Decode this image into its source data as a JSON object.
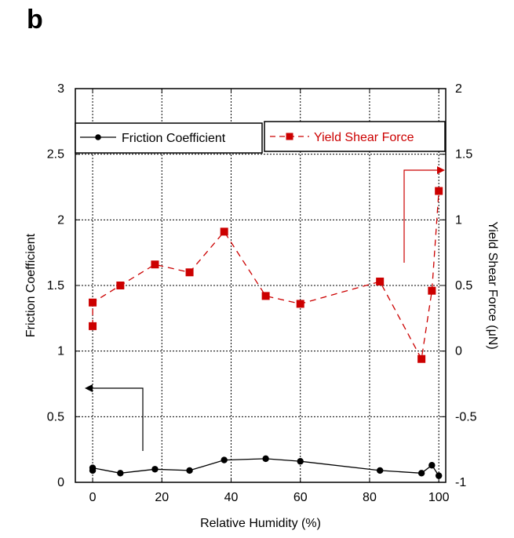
{
  "panel_label": "b",
  "chart_data": {
    "type": "line",
    "title": "",
    "xlabel": "Relative Humidity (%)",
    "ylabel": "Friction Coefficient",
    "y2label": "Yield Shear Force (μN)",
    "xlim": [
      -5,
      102
    ],
    "ylim": [
      0,
      3
    ],
    "y2lim": [
      -1,
      2
    ],
    "x_ticks": [
      "0",
      "20",
      "40",
      "60",
      "80",
      "100"
    ],
    "y_ticks": [
      "0",
      "0.5",
      "1",
      "1.5",
      "2",
      "2.5",
      "3"
    ],
    "y2_ticks": [
      "-1",
      "-0.5",
      "0",
      "0.5",
      "1",
      "1.5",
      "2"
    ],
    "grid": true,
    "legend_placement": "top",
    "series": [
      {
        "name": "Friction Coefficient",
        "axis": "left",
        "color": "#000000",
        "marker": "circle",
        "line": "solid",
        "x": [
          0,
          0,
          8,
          18,
          28,
          38,
          50,
          60,
          83,
          95,
          98,
          100
        ],
        "y": [
          0.09,
          0.11,
          0.07,
          0.1,
          0.09,
          0.17,
          0.18,
          0.16,
          0.09,
          0.07,
          0.13,
          0.05
        ]
      },
      {
        "name": "Yield Shear Force",
        "axis": "right",
        "color": "#cc0000",
        "marker": "square",
        "line": "dashed",
        "x": [
          0,
          0,
          8,
          18,
          28,
          38,
          50,
          60,
          83,
          95,
          98,
          100
        ],
        "y": [
          0.19,
          0.37,
          0.5,
          0.66,
          0.6,
          0.91,
          0.42,
          0.36,
          0.53,
          -0.06,
          0.46,
          1.22
        ]
      }
    ],
    "annotations": [
      {
        "type": "arrow",
        "color": "#000000",
        "points_to": "left axis"
      },
      {
        "type": "arrow",
        "color": "#cc0000",
        "points_to": "right axis"
      }
    ]
  }
}
